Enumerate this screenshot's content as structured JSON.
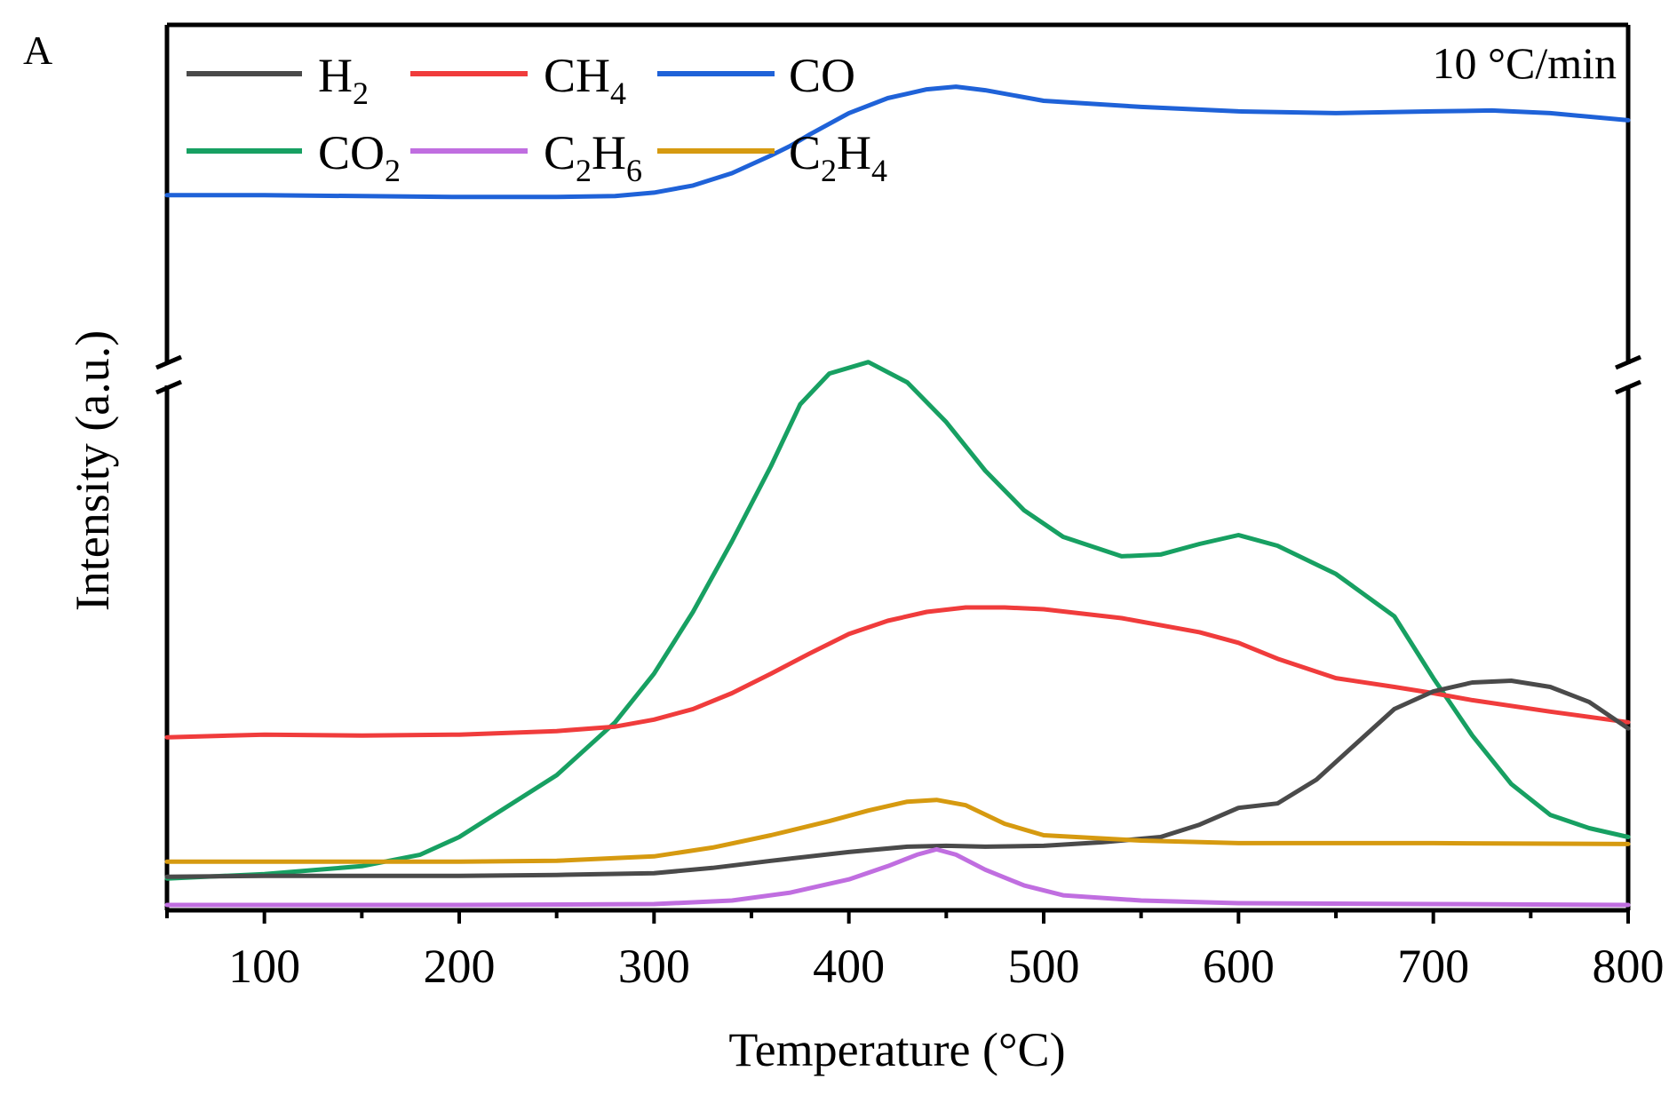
{
  "chart_data": {
    "type": "line",
    "panel_label": "A",
    "annotation": "10 °C/min",
    "xlabel": "Temperature (°C)",
    "ylabel": "Intensity (a.u.)",
    "xlim": [
      50,
      800
    ],
    "ylim": [
      0,
      100
    ],
    "x_ticks": [
      100,
      200,
      300,
      400,
      500,
      600,
      700,
      800
    ],
    "y_axis_break": true,
    "legend": [
      {
        "key": "h2",
        "base": "H",
        "sub": "2"
      },
      {
        "key": "ch4",
        "base": "CH",
        "sub": "4"
      },
      {
        "key": "co",
        "base": "CO",
        "sub": ""
      },
      {
        "key": "co2",
        "base": "CO",
        "sub": "2"
      },
      {
        "key": "c2h6",
        "base": "C",
        "sub": "2",
        "base2": "H",
        "sub2": "6"
      },
      {
        "key": "c2h4",
        "base": "C",
        "sub": "2",
        "base2": "H",
        "sub2": "4"
      }
    ],
    "series": [
      {
        "key": "co",
        "name": "CO",
        "color": "#1f62d8",
        "x": [
          50,
          100,
          150,
          200,
          250,
          280,
          300,
          320,
          340,
          360,
          370,
          380,
          400,
          420,
          440,
          455,
          470,
          500,
          550,
          600,
          650,
          700,
          730,
          760,
          800
        ],
        "y": [
          80.7,
          80.7,
          80.6,
          80.5,
          80.5,
          80.6,
          81.0,
          81.8,
          83.2,
          85.2,
          86.3,
          87.6,
          90.0,
          91.7,
          92.7,
          93.0,
          92.6,
          91.4,
          90.7,
          90.2,
          90.0,
          90.2,
          90.3,
          90.0,
          89.2
        ]
      },
      {
        "key": "co2",
        "name": "CO2",
        "color": "#17a062",
        "x": [
          50,
          100,
          150,
          180,
          200,
          250,
          280,
          300,
          320,
          340,
          360,
          375,
          390,
          410,
          430,
          450,
          470,
          490,
          510,
          540,
          560,
          580,
          600,
          620,
          650,
          680,
          700,
          720,
          740,
          760,
          780,
          800
        ],
        "y": [
          3.3,
          3.8,
          4.7,
          6.0,
          8.0,
          15.0,
          21.0,
          26.5,
          33.5,
          41.5,
          50.0,
          57.0,
          60.5,
          61.8,
          59.5,
          55.0,
          49.5,
          45.0,
          42.0,
          39.8,
          40.0,
          41.2,
          42.2,
          41.0,
          37.8,
          33.0,
          26.0,
          19.5,
          14.0,
          10.5,
          9.0,
          8.0
        ]
      },
      {
        "key": "ch4",
        "name": "CH4",
        "color": "#f03c3c",
        "x": [
          50,
          100,
          150,
          200,
          250,
          280,
          300,
          320,
          340,
          360,
          380,
          400,
          420,
          440,
          460,
          480,
          500,
          540,
          580,
          600,
          620,
          650,
          680,
          700,
          720,
          760,
          800
        ],
        "y": [
          19.3,
          19.6,
          19.5,
          19.6,
          20.0,
          20.5,
          21.3,
          22.5,
          24.3,
          26.5,
          28.8,
          31.0,
          32.5,
          33.5,
          34.0,
          34.0,
          33.8,
          32.8,
          31.2,
          30.0,
          28.2,
          26.0,
          25.0,
          24.3,
          23.5,
          22.2,
          21.0
        ]
      },
      {
        "key": "h2",
        "name": "H2",
        "color": "#4a4a4a",
        "x": [
          50,
          100,
          150,
          200,
          250,
          300,
          330,
          360,
          400,
          430,
          450,
          470,
          500,
          530,
          560,
          580,
          600,
          620,
          640,
          660,
          680,
          700,
          720,
          740,
          760,
          780,
          800
        ],
        "y": [
          3.5,
          3.6,
          3.6,
          3.6,
          3.7,
          3.9,
          4.5,
          5.3,
          6.3,
          6.9,
          7.0,
          6.9,
          7.0,
          7.4,
          8.0,
          9.4,
          11.3,
          11.8,
          14.5,
          18.5,
          22.5,
          24.5,
          25.5,
          25.7,
          25.0,
          23.3,
          20.3
        ]
      },
      {
        "key": "c2h4",
        "name": "C2H4",
        "color": "#d69a10",
        "x": [
          50,
          100,
          150,
          200,
          250,
          300,
          330,
          360,
          390,
          410,
          430,
          445,
          460,
          480,
          500,
          550,
          600,
          700,
          800
        ],
        "y": [
          5.2,
          5.2,
          5.2,
          5.2,
          5.3,
          5.8,
          6.8,
          8.2,
          9.8,
          11.0,
          12.0,
          12.2,
          11.6,
          9.5,
          8.2,
          7.6,
          7.3,
          7.3,
          7.2
        ]
      },
      {
        "key": "c2h6",
        "name": "C2H6",
        "color": "#c06ee0",
        "x": [
          50,
          200,
          300,
          340,
          370,
          400,
          420,
          435,
          445,
          455,
          470,
          490,
          510,
          550,
          600,
          700,
          800
        ],
        "y": [
          0.3,
          0.3,
          0.4,
          0.8,
          1.7,
          3.2,
          4.7,
          6.0,
          6.6,
          6.0,
          4.3,
          2.5,
          1.4,
          0.8,
          0.5,
          0.4,
          0.3
        ]
      }
    ]
  }
}
